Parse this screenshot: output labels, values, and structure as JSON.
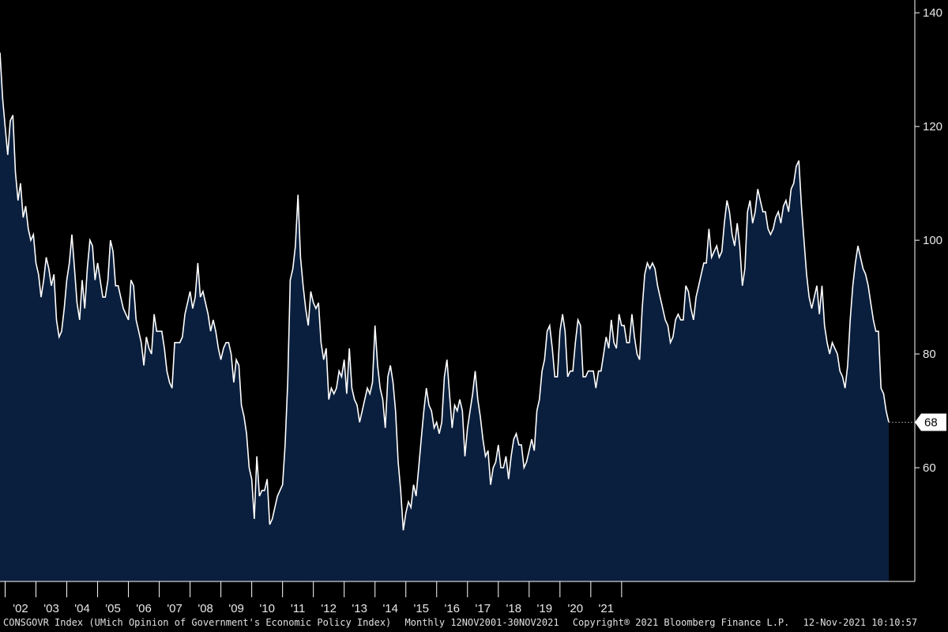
{
  "chart_data": {
    "type": "area",
    "series": [
      {
        "frequency": "Monthly",
        "start": "2001-11",
        "values": [
          133,
          125,
          120,
          115,
          121,
          122,
          112,
          107,
          110,
          104,
          106,
          102,
          100,
          101,
          96,
          94,
          90,
          93,
          97,
          95,
          92,
          94,
          86,
          83,
          84,
          88,
          93,
          96,
          101,
          95,
          89,
          86,
          93,
          88,
          95,
          100,
          99,
          93,
          96,
          93,
          90,
          90,
          93,
          100,
          98,
          92,
          92,
          90,
          88,
          87,
          86,
          93,
          92,
          86,
          84,
          82,
          78,
          83,
          81,
          80,
          87,
          84,
          84,
          84,
          81,
          77,
          75,
          74,
          82,
          82,
          82,
          83,
          87,
          89,
          91,
          88,
          90,
          96,
          90,
          91,
          89,
          87,
          84,
          86,
          84,
          81,
          79,
          81,
          82,
          82,
          80,
          75,
          79,
          78,
          71,
          69,
          66,
          60,
          58,
          51,
          62,
          55,
          56,
          56,
          58,
          50,
          51,
          53,
          55,
          56,
          57,
          64,
          75,
          93,
          95,
          99,
          108,
          97,
          92,
          88,
          85,
          91,
          89,
          88,
          89,
          82,
          79,
          81,
          72,
          74,
          73,
          74,
          77,
          76,
          79,
          73,
          81,
          74,
          72,
          71,
          68,
          70,
          72,
          74,
          73,
          75,
          85,
          78,
          74,
          72,
          67,
          76,
          78,
          75,
          70,
          61,
          56,
          49,
          52,
          54,
          53,
          57,
          55,
          60,
          65,
          70,
          74,
          71,
          70,
          67,
          68,
          66,
          68,
          76,
          79,
          73,
          67,
          71,
          70,
          72,
          70,
          62,
          67,
          70,
          73,
          77,
          72,
          69,
          65,
          62,
          63,
          57,
          60,
          61,
          64,
          60,
          60,
          62,
          58,
          62,
          65,
          66,
          64,
          64,
          60,
          61,
          63,
          65,
          63,
          70,
          72,
          77,
          79,
          84,
          85,
          81,
          76,
          76,
          84,
          87,
          84,
          76,
          77,
          77,
          82,
          86,
          85,
          76,
          76,
          77,
          77,
          77,
          74,
          77,
          77,
          80,
          83,
          81,
          86,
          82,
          81,
          87,
          85,
          85,
          82,
          82,
          87,
          83,
          80,
          79,
          88,
          94,
          96,
          95,
          96,
          95,
          92,
          90,
          88,
          86,
          85,
          82,
          83,
          86,
          87,
          86,
          86,
          92,
          91,
          88,
          86,
          90,
          92,
          94,
          96,
          96,
          102,
          97,
          98,
          99,
          97,
          98,
          103,
          107,
          105,
          101,
          99,
          103,
          99,
          92,
          95,
          105,
          107,
          103,
          105,
          109,
          107,
          105,
          105,
          102,
          101,
          102,
          104,
          105,
          103,
          106,
          107,
          105,
          109,
          110,
          113,
          114,
          106,
          100,
          94,
          90,
          88,
          90,
          92,
          87,
          92,
          85,
          82,
          80,
          82,
          81,
          80,
          77,
          76,
          74,
          78,
          86,
          92,
          96,
          99,
          97,
          95,
          94,
          92,
          89,
          86,
          84,
          84,
          74,
          73,
          70,
          68
        ]
      }
    ],
    "x_ticks": [
      "'02",
      "'03",
      "'04",
      "'05",
      "'06",
      "'07",
      "'08",
      "'09",
      "'10",
      "'11",
      "'12",
      "'13",
      "'14",
      "'15",
      "'16",
      "'17",
      "'18",
      "'19",
      "'20",
      "'21"
    ],
    "y_ticks": [
      60,
      80,
      100,
      120,
      140
    ],
    "ylim": [
      40,
      141
    ],
    "last_value_label": "68",
    "colors": {
      "background": "#000000",
      "fill": "#0a1f3d",
      "line": "#ffffff",
      "axis": "#ffffff",
      "last_box": "#ffffff"
    }
  },
  "footer": {
    "ticker": "CONSGOVR Index (UMich Opinion of Government's Economic Policy Index)",
    "period": "Monthly 12NOV2001-30NOV2021",
    "copyright": "Copyright® 2021 Bloomberg Finance L.P.",
    "timestamp": "12-Nov-2021 10:10:57"
  }
}
